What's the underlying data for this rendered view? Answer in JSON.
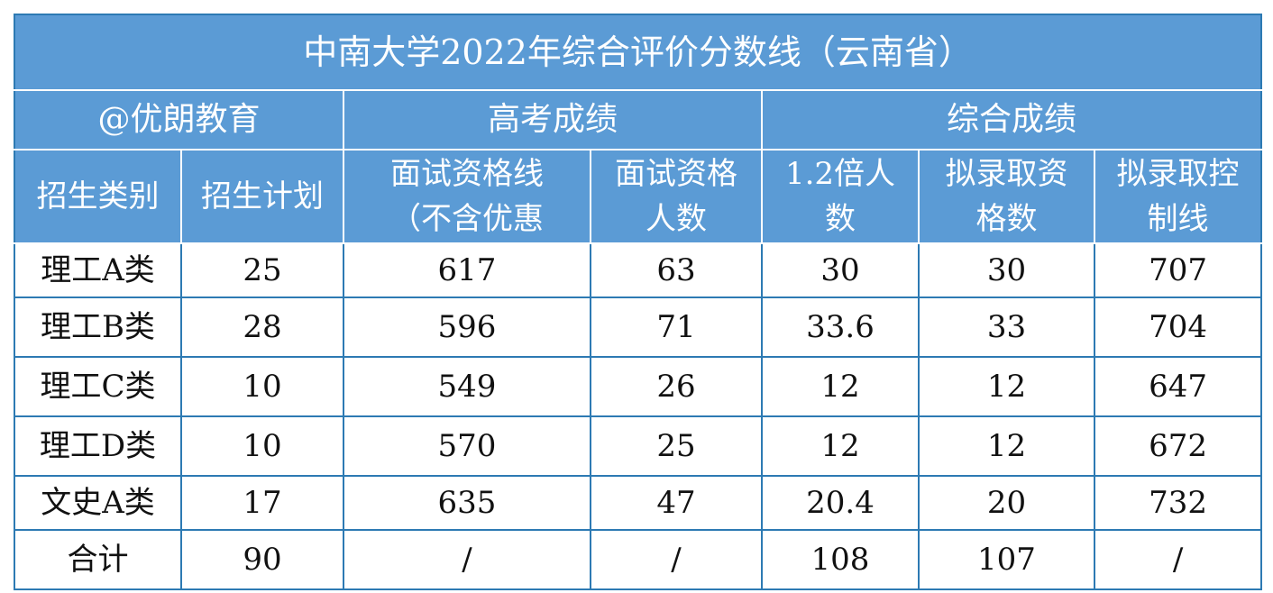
{
  "title": "中南大学2022年综合评价分数线（云南省）",
  "watermark": "@优朗教育",
  "groups": {
    "gaokao": "高考成绩",
    "zonghe": "综合成绩"
  },
  "columns": {
    "category": "招生类别",
    "plan": "招生计划",
    "interview_line": "面试资格线（不含优惠",
    "interview_count": "面试资格人数",
    "times12": "1.2倍人数",
    "admit_count": "拟录取资格数",
    "admit_line": "拟录取控制线"
  },
  "rows": [
    {
      "category": "理工A类",
      "plan": "25",
      "interview_line": "617",
      "interview_count": "63",
      "times12": "30",
      "admit_count": "30",
      "admit_line": "707"
    },
    {
      "category": "理工B类",
      "plan": "28",
      "interview_line": "596",
      "interview_count": "71",
      "times12": "33.6",
      "admit_count": "33",
      "admit_line": "704"
    },
    {
      "category": "理工C类",
      "plan": "10",
      "interview_line": "549",
      "interview_count": "26",
      "times12": "12",
      "admit_count": "12",
      "admit_line": "647"
    },
    {
      "category": "理工D类",
      "plan": "10",
      "interview_line": "570",
      "interview_count": "25",
      "times12": "12",
      "admit_count": "12",
      "admit_line": "672"
    },
    {
      "category": "文史A类",
      "plan": "17",
      "interview_line": "635",
      "interview_count": "47",
      "times12": "20.4",
      "admit_count": "20",
      "admit_line": "732"
    }
  ],
  "total": {
    "category": "合计",
    "plan": "90",
    "interview_line": "/",
    "interview_count": "/",
    "times12": "108",
    "admit_count": "107",
    "admit_line": "/"
  },
  "colors": {
    "header_bg": "#5b9bd5",
    "header_text": "#ffffff",
    "border": "#2d7ab3"
  }
}
